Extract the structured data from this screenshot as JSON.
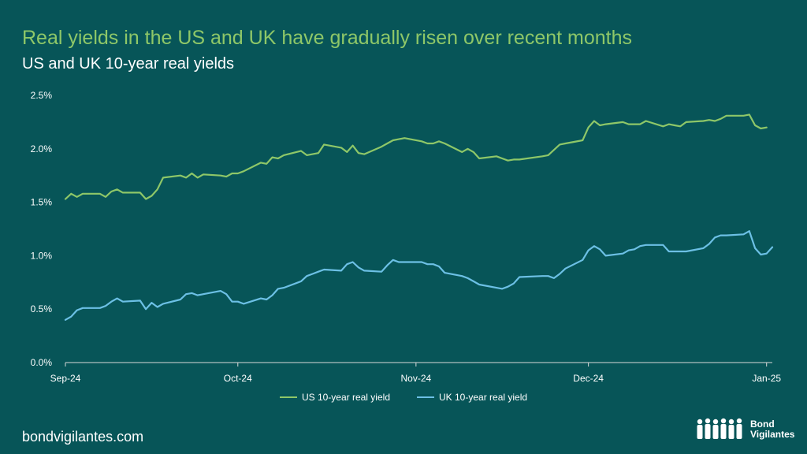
{
  "header": {
    "title": "Real yields in the US and UK have gradually risen over recent months",
    "subtitle": "US and UK 10-year real yields"
  },
  "footer": {
    "site": "bondvigilantes.com",
    "logo_line1": "Bond",
    "logo_line2": "Vigilantes",
    "logo_icon": "people-group-icon"
  },
  "colors": {
    "background": "#075558",
    "us_series": "#8ec768",
    "uk_series": "#6cc0e5",
    "title": "#8ec768"
  },
  "chart_data": {
    "type": "line",
    "title": "US and UK 10-year real yields",
    "ylim": [
      0,
      2.5
    ],
    "y_ticks": [
      0,
      0.5,
      1.0,
      1.5,
      2.0,
      2.5
    ],
    "y_tick_labels": [
      "0.0%",
      "0.5%",
      "1.0%",
      "1.5%",
      "2.0%",
      "2.5%"
    ],
    "x_range": [
      "2024-09-01",
      "2025-01-02"
    ],
    "x_ticks": [
      "2024-09-01",
      "2024-10-01",
      "2024-11-01",
      "2024-12-01",
      "2025-01-01"
    ],
    "x_tick_labels": [
      "Sep-24",
      "Oct-24",
      "Nov-24",
      "Dec-24",
      "Jan-25"
    ],
    "legend_position": "bottom",
    "grid": false,
    "series": [
      {
        "name": "US 10-year real yield",
        "points": [
          [
            "2024-09-01",
            1.53
          ],
          [
            "2024-09-02",
            1.58
          ],
          [
            "2024-09-03",
            1.55
          ],
          [
            "2024-09-04",
            1.58
          ],
          [
            "2024-09-07",
            1.58
          ],
          [
            "2024-09-08",
            1.55
          ],
          [
            "2024-09-09",
            1.6
          ],
          [
            "2024-09-10",
            1.62
          ],
          [
            "2024-09-11",
            1.59
          ],
          [
            "2024-09-14",
            1.59
          ],
          [
            "2024-09-15",
            1.53
          ],
          [
            "2024-09-16",
            1.56
          ],
          [
            "2024-09-17",
            1.62
          ],
          [
            "2024-09-18",
            1.73
          ],
          [
            "2024-09-21",
            1.75
          ],
          [
            "2024-09-22",
            1.73
          ],
          [
            "2024-09-23",
            1.77
          ],
          [
            "2024-09-24",
            1.73
          ],
          [
            "2024-09-25",
            1.76
          ],
          [
            "2024-09-28",
            1.75
          ],
          [
            "2024-09-29",
            1.74
          ],
          [
            "2024-09-30",
            1.77
          ],
          [
            "2024-10-01",
            1.77
          ],
          [
            "2024-10-02",
            1.79
          ],
          [
            "2024-10-05",
            1.87
          ],
          [
            "2024-10-06",
            1.86
          ],
          [
            "2024-10-07",
            1.92
          ],
          [
            "2024-10-08",
            1.91
          ],
          [
            "2024-10-09",
            1.94
          ],
          [
            "2024-10-12",
            1.98
          ],
          [
            "2024-10-13",
            1.94
          ],
          [
            "2024-10-14",
            1.95
          ],
          [
            "2024-10-15",
            1.96
          ],
          [
            "2024-10-16",
            2.04
          ],
          [
            "2024-10-19",
            2.01
          ],
          [
            "2024-10-20",
            1.97
          ],
          [
            "2024-10-21",
            2.03
          ],
          [
            "2024-10-22",
            1.96
          ],
          [
            "2024-10-23",
            1.95
          ],
          [
            "2024-10-26",
            2.02
          ],
          [
            "2024-10-27",
            2.05
          ],
          [
            "2024-10-28",
            2.08
          ],
          [
            "2024-10-29",
            2.09
          ],
          [
            "2024-10-30",
            2.1
          ],
          [
            "2024-11-02",
            2.07
          ],
          [
            "2024-11-03",
            2.05
          ],
          [
            "2024-11-04",
            2.05
          ],
          [
            "2024-11-05",
            2.07
          ],
          [
            "2024-11-06",
            2.05
          ],
          [
            "2024-11-09",
            1.97
          ],
          [
            "2024-11-10",
            2.0
          ],
          [
            "2024-11-11",
            1.97
          ],
          [
            "2024-11-12",
            1.91
          ],
          [
            "2024-11-15",
            1.93
          ],
          [
            "2024-11-16",
            1.91
          ],
          [
            "2024-11-17",
            1.89
          ],
          [
            "2024-11-18",
            1.9
          ],
          [
            "2024-11-19",
            1.9
          ],
          [
            "2024-11-23",
            1.93
          ],
          [
            "2024-11-24",
            1.94
          ],
          [
            "2024-11-25",
            1.99
          ],
          [
            "2024-11-26",
            2.04
          ],
          [
            "2024-11-27",
            2.05
          ],
          [
            "2024-11-30",
            2.08
          ],
          [
            "2024-12-01",
            2.2
          ],
          [
            "2024-12-02",
            2.26
          ],
          [
            "2024-12-03",
            2.22
          ],
          [
            "2024-12-04",
            2.23
          ],
          [
            "2024-12-07",
            2.25
          ],
          [
            "2024-12-08",
            2.23
          ],
          [
            "2024-12-09",
            2.23
          ],
          [
            "2024-12-10",
            2.23
          ],
          [
            "2024-12-11",
            2.26
          ],
          [
            "2024-12-14",
            2.21
          ],
          [
            "2024-12-15",
            2.23
          ],
          [
            "2024-12-16",
            2.22
          ],
          [
            "2024-12-17",
            2.21
          ],
          [
            "2024-12-18",
            2.25
          ],
          [
            "2024-12-21",
            2.26
          ],
          [
            "2024-12-22",
            2.27
          ],
          [
            "2024-12-23",
            2.26
          ],
          [
            "2024-12-24",
            2.28
          ],
          [
            "2024-12-25",
            2.31
          ],
          [
            "2024-12-28",
            2.31
          ],
          [
            "2024-12-29",
            2.32
          ],
          [
            "2024-12-30",
            2.22
          ],
          [
            "2024-12-31",
            2.19
          ],
          [
            "2025-01-01",
            2.2
          ]
        ]
      },
      {
        "name": "UK 10-year real yield",
        "points": [
          [
            "2024-09-01",
            0.4
          ],
          [
            "2024-09-02",
            0.43
          ],
          [
            "2024-09-03",
            0.49
          ],
          [
            "2024-09-04",
            0.51
          ],
          [
            "2024-09-07",
            0.51
          ],
          [
            "2024-09-08",
            0.53
          ],
          [
            "2024-09-09",
            0.57
          ],
          [
            "2024-09-10",
            0.6
          ],
          [
            "2024-09-11",
            0.57
          ],
          [
            "2024-09-14",
            0.58
          ],
          [
            "2024-09-15",
            0.5
          ],
          [
            "2024-09-16",
            0.56
          ],
          [
            "2024-09-17",
            0.52
          ],
          [
            "2024-09-18",
            0.55
          ],
          [
            "2024-09-21",
            0.59
          ],
          [
            "2024-09-22",
            0.64
          ],
          [
            "2024-09-23",
            0.65
          ],
          [
            "2024-09-24",
            0.63
          ],
          [
            "2024-09-25",
            0.64
          ],
          [
            "2024-09-28",
            0.67
          ],
          [
            "2024-09-29",
            0.64
          ],
          [
            "2024-09-30",
            0.57
          ],
          [
            "2024-10-01",
            0.57
          ],
          [
            "2024-10-02",
            0.55
          ],
          [
            "2024-10-05",
            0.6
          ],
          [
            "2024-10-06",
            0.59
          ],
          [
            "2024-10-07",
            0.63
          ],
          [
            "2024-10-08",
            0.69
          ],
          [
            "2024-10-09",
            0.7
          ],
          [
            "2024-10-12",
            0.76
          ],
          [
            "2024-10-13",
            0.81
          ],
          [
            "2024-10-14",
            0.83
          ],
          [
            "2024-10-15",
            0.85
          ],
          [
            "2024-10-16",
            0.87
          ],
          [
            "2024-10-19",
            0.86
          ],
          [
            "2024-10-20",
            0.92
          ],
          [
            "2024-10-21",
            0.94
          ],
          [
            "2024-10-22",
            0.89
          ],
          [
            "2024-10-23",
            0.86
          ],
          [
            "2024-10-26",
            0.85
          ],
          [
            "2024-10-27",
            0.91
          ],
          [
            "2024-10-28",
            0.96
          ],
          [
            "2024-10-29",
            0.94
          ],
          [
            "2024-10-30",
            0.94
          ],
          [
            "2024-11-02",
            0.94
          ],
          [
            "2024-11-03",
            0.92
          ],
          [
            "2024-11-04",
            0.92
          ],
          [
            "2024-11-05",
            0.9
          ],
          [
            "2024-11-06",
            0.84
          ],
          [
            "2024-11-09",
            0.81
          ],
          [
            "2024-11-10",
            0.79
          ],
          [
            "2024-11-11",
            0.76
          ],
          [
            "2024-11-12",
            0.73
          ],
          [
            "2024-11-15",
            0.7
          ],
          [
            "2024-11-16",
            0.69
          ],
          [
            "2024-11-17",
            0.71
          ],
          [
            "2024-11-18",
            0.74
          ],
          [
            "2024-11-19",
            0.8
          ],
          [
            "2024-11-23",
            0.81
          ],
          [
            "2024-11-24",
            0.81
          ],
          [
            "2024-11-25",
            0.79
          ],
          [
            "2024-11-26",
            0.83
          ],
          [
            "2024-11-27",
            0.88
          ],
          [
            "2024-11-30",
            0.96
          ],
          [
            "2024-12-01",
            1.05
          ],
          [
            "2024-12-02",
            1.09
          ],
          [
            "2024-12-03",
            1.06
          ],
          [
            "2024-12-04",
            1.0
          ],
          [
            "2024-12-07",
            1.02
          ],
          [
            "2024-12-08",
            1.05
          ],
          [
            "2024-12-09",
            1.06
          ],
          [
            "2024-12-10",
            1.09
          ],
          [
            "2024-12-11",
            1.1
          ],
          [
            "2024-12-14",
            1.1
          ],
          [
            "2024-12-15",
            1.04
          ],
          [
            "2024-12-16",
            1.04
          ],
          [
            "2024-12-17",
            1.04
          ],
          [
            "2024-12-18",
            1.04
          ],
          [
            "2024-12-21",
            1.07
          ],
          [
            "2024-12-22",
            1.11
          ],
          [
            "2024-12-23",
            1.17
          ],
          [
            "2024-12-24",
            1.19
          ],
          [
            "2024-12-25",
            1.19
          ],
          [
            "2024-12-28",
            1.2
          ],
          [
            "2024-12-29",
            1.23
          ],
          [
            "2024-12-30",
            1.07
          ],
          [
            "2024-12-31",
            1.01
          ],
          [
            "2025-01-01",
            1.02
          ],
          [
            "2025-01-02",
            1.08
          ]
        ]
      }
    ]
  }
}
